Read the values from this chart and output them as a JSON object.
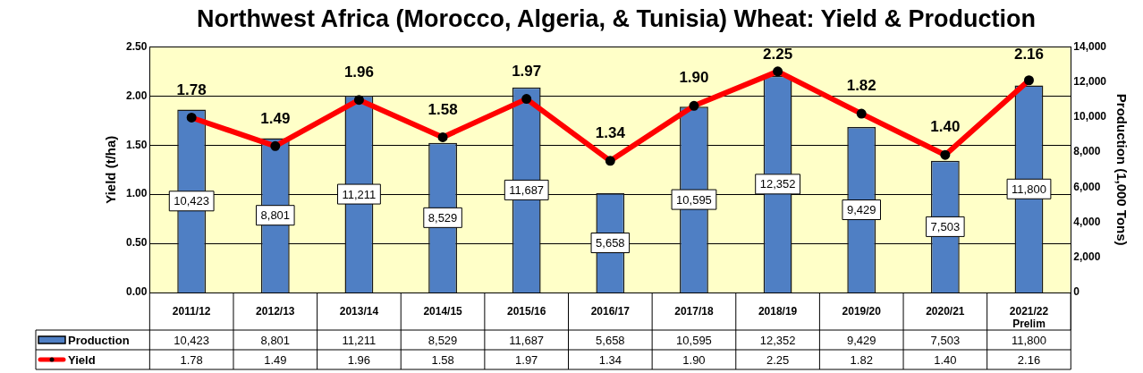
{
  "chart_data": {
    "type": "bar",
    "title": "Northwest Africa (Morocco, Algeria, & Tunisia) Wheat: Yield & Production",
    "categories": [
      "2011/12",
      "2012/13",
      "2013/14",
      "2014/15",
      "2015/16",
      "2016/17",
      "2017/18",
      "2018/19",
      "2019/20",
      "2020/21",
      "2021/22 Prelim"
    ],
    "series": [
      {
        "name": "Production",
        "type": "bar",
        "axis": "y2",
        "color": "#4f7fc4",
        "values": [
          10423,
          8801,
          11211,
          8529,
          11687,
          5658,
          10595,
          12352,
          9429,
          7503,
          11800
        ],
        "value_labels": [
          "10,423",
          "8,801",
          "11,211",
          "8,529",
          "11,687",
          "5,658",
          "10,595",
          "12,352",
          "9,429",
          "7,503",
          "11,800"
        ]
      },
      {
        "name": "Yield",
        "type": "line",
        "axis": "y",
        "color": "#ff0000",
        "values": [
          1.78,
          1.49,
          1.96,
          1.58,
          1.97,
          1.34,
          1.9,
          2.25,
          1.82,
          1.4,
          2.16
        ],
        "value_labels": [
          "1.78",
          "1.49",
          "1.96",
          "1.58",
          "1.97",
          "1.34",
          "1.90",
          "2.25",
          "1.82",
          "1.40",
          "2.16"
        ]
      }
    ],
    "ylabel": "Yield (t/ha)",
    "y2label": "Production (1,000 Tons)",
    "ylim": [
      0,
      2.5
    ],
    "yticks": [
      {
        "value": 0,
        "label": "0.00"
      },
      {
        "value": 0.5,
        "label": "0.50"
      },
      {
        "value": 1,
        "label": "1.00"
      },
      {
        "value": 1.5,
        "label": "1.50"
      },
      {
        "value": 2,
        "label": "2.00"
      },
      {
        "value": 2.5,
        "label": "2.50"
      }
    ],
    "y2lim": [
      0,
      14000
    ],
    "y2ticks": [
      0,
      {
        "value": 2000,
        "label": "2,000"
      },
      {
        "value": 4000,
        "label": "4,000"
      },
      {
        "value": 6000,
        "label": "6,000"
      },
      {
        "value": 8000,
        "label": "8,000"
      },
      {
        "value": 10000,
        "label": "10,000"
      },
      {
        "value": 12000,
        "label": "12,000"
      },
      {
        "value": 14000,
        "label": "14,000"
      }
    ],
    "grid": "y",
    "legend": "bottom",
    "marker": "circle"
  }
}
